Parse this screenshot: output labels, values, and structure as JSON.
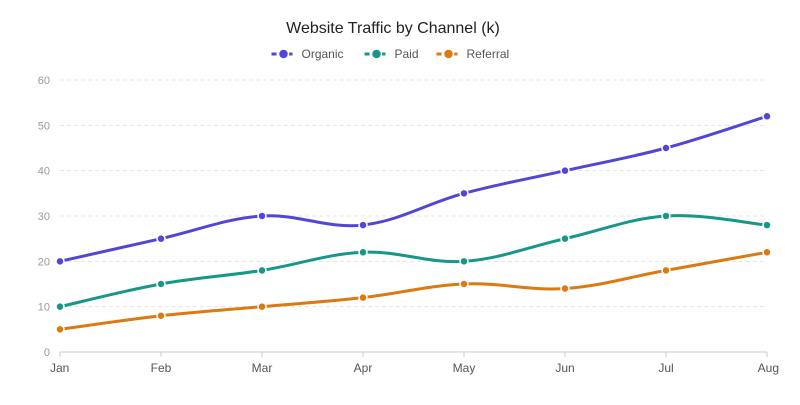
{
  "chart_data": {
    "type": "line",
    "title": "Website Traffic by Channel (k)",
    "xlabel": "",
    "ylabel": "",
    "categories": [
      "Jan",
      "Feb",
      "Mar",
      "Apr",
      "May",
      "Jun",
      "Jul",
      "Aug"
    ],
    "ylim": [
      0,
      60
    ],
    "yticks": [
      0,
      10,
      20,
      30,
      40,
      50,
      60
    ],
    "grid": true,
    "legend_position": "top-center",
    "series": [
      {
        "name": "Organic",
        "color": "#5046d8",
        "values": [
          20,
          25,
          30,
          28,
          35,
          40,
          45,
          52
        ]
      },
      {
        "name": "Paid",
        "color": "#17968a",
        "values": [
          10,
          15,
          18,
          22,
          20,
          25,
          30,
          28
        ]
      },
      {
        "name": "Referral",
        "color": "#db7a10",
        "values": [
          5,
          8,
          10,
          12,
          15,
          14,
          18,
          22
        ]
      }
    ]
  }
}
